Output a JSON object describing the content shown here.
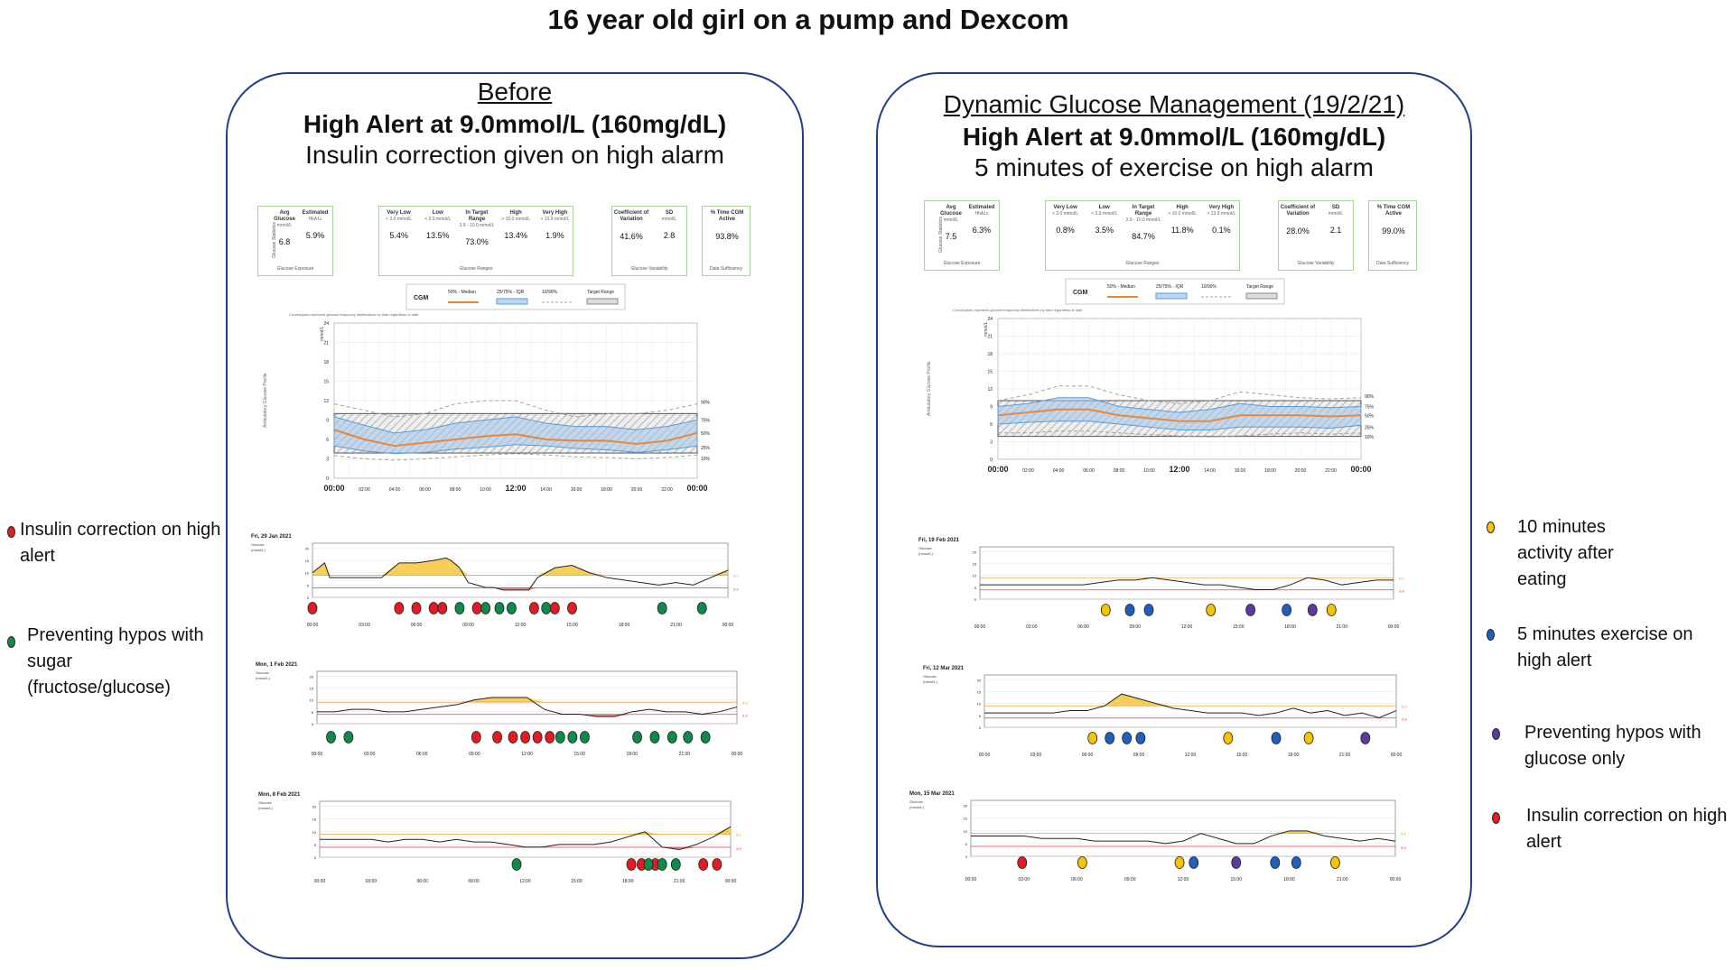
{
  "title": "16 year old girl on a pump and Dexcom",
  "colors": {
    "panel_border": "#1f3d8a",
    "red": "#e41b23",
    "green": "#0e8a4a",
    "yellow": "#f5c400",
    "blue": "#1e5fbf",
    "purple": "#5b3b9e",
    "median": "#e8873a",
    "iqr": "#5b9bd5",
    "fill": "#f7c948"
  },
  "left": {
    "heading": "Before",
    "alert": "High Alert at 9.0mmol/L (160mg/dL)",
    "subheading": "Insulin correction given on high alarm",
    "stats": {
      "g1_label": "Glucose Statistics",
      "g1_caption": "Glucose Exposure",
      "avg_label": "Avg Glucose",
      "avg_unit": "mmol/L",
      "avg": "6.8",
      "a1c_label": "Estimated",
      "a1c_sub": "HbA1c",
      "a1c": "5.9%",
      "g2_caption": "Glucose Ranges",
      "vlow_label": "Very Low",
      "vlow_sub": "< 3.0 mmol/L",
      "vlow": "5.4%",
      "low_label": "Low",
      "low_sub": "< 3.9 mmol/L",
      "low": "13.5%",
      "tir_label": "In Target Range",
      "tir_sub": "3.9 - 10.0 mmol/L",
      "tir": "73.0%",
      "high_label": "High",
      "high_sub": "> 10.0 mmol/L",
      "high": "13.4%",
      "vhigh_label": "Very High",
      "vhigh_sub": "> 13.9 mmol/L",
      "vhigh": "1.9%",
      "g3_caption": "Glucose Variability",
      "cv_label": "Coefficient of Variation",
      "cv": "41.6%",
      "sd_label": "SD",
      "sd_sub": "mmol/L",
      "sd": "2.8",
      "g4_caption": "Data Sufficiency",
      "cgm_label": "% Time CGM Active",
      "cgm": "93.8%"
    },
    "days": [
      "Fri, 29 Jan 2021",
      "Mon, 1 Feb 2021",
      "Mon, 8 Feb 2021"
    ]
  },
  "right": {
    "heading": "Dynamic Glucose Management (19/2/21)",
    "alert": "High Alert at 9.0mmol/L (160mg/dL)",
    "subheading": "5 minutes of exercise on high alarm",
    "stats": {
      "g1_label": "Glucose Statistics",
      "g1_caption": "Glucose Exposure",
      "avg_label": "Avg Glucose",
      "avg_unit": "mmol/L",
      "avg": "7.5",
      "a1c_label": "Estimated",
      "a1c_sub": "HbA1c",
      "a1c": "6.3%",
      "g2_caption": "Glucose Ranges",
      "vlow_label": "Very Low",
      "vlow_sub": "< 3.0 mmol/L",
      "vlow": "0.8%",
      "low_label": "Low",
      "low_sub": "< 3.9 mmol/L",
      "low": "3.5%",
      "tir_label": "In Target Range",
      "tir_sub": "3.9 - 10.0 mmol/L",
      "tir": "84.7%",
      "high_label": "High",
      "high_sub": "> 10.0 mmol/L",
      "high": "11.8%",
      "vhigh_label": "Very High",
      "vhigh_sub": "> 13.9 mmol/L",
      "vhigh": "0.1%",
      "g3_caption": "Glucose Variability",
      "cv_label": "Coefficient of Variation",
      "cv": "28.0%",
      "sd_label": "SD",
      "sd_sub": "mmol/L",
      "sd": "2.1",
      "g4_caption": "Data Sufficiency",
      "cgm_label": "% Time CGM Active",
      "cgm": "99.0%"
    },
    "days": [
      "Fri, 19 Feb 2021",
      "Fri, 12 Mar 2021",
      "Mon, 15 Mar 2021"
    ]
  },
  "legend_cgm": {
    "cgm": "CGM",
    "median": "50% - Median",
    "iqr": "25/75% - IQR",
    "p1090": "10/90%",
    "target": "Target Range"
  },
  "agp_caption": "Curves/plots represent glucose frequency distributions by time regardless of date",
  "agp_ylabel": "Ambulatory Glucose Profile",
  "agp_unit": "mmol/L",
  "day_ylabel": "Glucose",
  "day_unit": "(mmol/L)",
  "left_key": [
    {
      "color": "red",
      "text": "Insulin correction on high alert"
    },
    {
      "color": "green",
      "text": "Preventing hypos with sugar (fructose/glucose)"
    }
  ],
  "right_key": [
    {
      "color": "yellow",
      "text": "10 minutes activity after eating"
    },
    {
      "color": "blue",
      "text": "5 minutes exercise on high alert"
    },
    {
      "color": "purple",
      "text": "Preventing hypos with glucose only"
    },
    {
      "color": "red",
      "text": "Insulin correction on high alert"
    }
  ],
  "chart_data": [
    {
      "type": "area",
      "name_in_image": "Before AGP",
      "x_hours": [
        0,
        2,
        4,
        6,
        8,
        10,
        12,
        14,
        16,
        18,
        20,
        22,
        24
      ],
      "x_tick_labels": [
        "00:00",
        "02:00",
        "04:00",
        "06:00",
        "08:00",
        "10:00",
        "12:00",
        "14:00",
        "16:00",
        "18:00",
        "20:00",
        "22:00",
        "00:00"
      ],
      "y_ticks": [
        0,
        3,
        6,
        9,
        12,
        15,
        18,
        21,
        24
      ],
      "ylim": [
        0,
        24
      ],
      "percentile_labels": [
        "90%",
        "75%",
        "50%",
        "25%",
        "10%"
      ],
      "target_range": [
        3.9,
        10
      ],
      "p10": [
        3.5,
        3.0,
        2.8,
        3.0,
        3.3,
        3.6,
        3.8,
        3.6,
        3.3,
        3.2,
        3.0,
        3.2,
        3.6
      ],
      "p25": [
        5.0,
        4.2,
        3.8,
        4.0,
        4.5,
        4.8,
        5.2,
        5.0,
        4.6,
        4.4,
        4.0,
        4.4,
        5.0
      ],
      "p50": [
        7.5,
        6.0,
        5.0,
        5.5,
        6.0,
        6.5,
        6.8,
        6.0,
        5.8,
        5.8,
        5.3,
        5.8,
        7.0
      ],
      "p75": [
        9.5,
        8.2,
        7.0,
        7.5,
        8.5,
        9.0,
        9.5,
        8.5,
        8.0,
        8.0,
        7.5,
        8.0,
        9.0
      ],
      "p90": [
        11.5,
        10.5,
        9.5,
        10.0,
        11.5,
        12.0,
        12.0,
        10.5,
        9.5,
        10.0,
        10.0,
        10.5,
        11.5
      ]
    },
    {
      "type": "area",
      "name_in_image": "Dynamic Glucose Management AGP",
      "x_hours": [
        0,
        2,
        4,
        6,
        8,
        10,
        12,
        14,
        16,
        18,
        20,
        22,
        24
      ],
      "x_tick_labels": [
        "00:00",
        "02:00",
        "04:00",
        "06:00",
        "08:00",
        "10:00",
        "12:00",
        "14:00",
        "16:00",
        "18:00",
        "20:00",
        "22:00",
        "00:00"
      ],
      "y_ticks": [
        0,
        3,
        6,
        9,
        12,
        15,
        18,
        21,
        24
      ],
      "ylim": [
        0,
        24
      ],
      "percentile_labels": [
        "90%",
        "75%",
        "50%",
        "25%",
        "10%"
      ],
      "target_range": [
        3.9,
        10
      ],
      "p10": [
        4.5,
        4.5,
        4.8,
        4.8,
        4.5,
        4.2,
        4.0,
        3.8,
        4.0,
        4.3,
        4.5,
        4.3,
        4.5
      ],
      "p25": [
        6.0,
        6.3,
        6.5,
        6.5,
        6.0,
        5.5,
        5.0,
        5.0,
        5.5,
        5.5,
        5.5,
        5.3,
        5.8
      ],
      "p50": [
        7.5,
        8.0,
        8.5,
        8.5,
        7.5,
        7.0,
        6.5,
        6.5,
        7.5,
        7.5,
        7.5,
        7.3,
        7.5
      ],
      "p75": [
        9.0,
        9.5,
        10.5,
        10.5,
        9.0,
        8.5,
        8.0,
        8.5,
        9.5,
        9.0,
        9.0,
        8.8,
        9.0
      ],
      "p90": [
        10.0,
        11.0,
        12.5,
        12.5,
        11.0,
        10.0,
        9.5,
        10.0,
        11.5,
        11.0,
        10.5,
        10.3,
        10.5
      ]
    },
    {
      "type": "line",
      "name_in_image": "Fri, 29 Jan 2021",
      "x_tick_labels": [
        "00:00",
        "03:00",
        "06:00",
        "09:00",
        "12:00",
        "15:00",
        "18:00",
        "21:00",
        "00:00"
      ],
      "y_ticks": [
        0,
        5,
        10,
        15,
        20
      ],
      "ylim": [
        0,
        22
      ],
      "thresholds": {
        "high": 9.0,
        "low": 3.9
      },
      "threshold_labels": [
        "9.0",
        "3.9"
      ],
      "x_hours": [
        0,
        0.7,
        1,
        2,
        3,
        4,
        5,
        6,
        7,
        7.7,
        8,
        8.5,
        9,
        9.5,
        10,
        10.5,
        11,
        12,
        12.5,
        13,
        14,
        15,
        16,
        17,
        18,
        19,
        20,
        21,
        22,
        23,
        24
      ],
      "y": [
        10,
        14,
        8,
        8,
        8,
        8,
        14,
        14,
        15,
        16,
        15,
        12,
        6,
        5,
        4,
        4,
        3,
        3,
        3,
        8,
        12,
        13,
        10,
        8,
        7,
        6,
        5,
        6,
        5,
        8,
        11
      ],
      "markers": {
        "red": [
          0,
          5,
          6,
          7,
          7.5,
          9.5,
          12.8,
          14,
          15
        ],
        "green": [
          8.5,
          10,
          10.8,
          11.5,
          13.5,
          20.2,
          22.5
        ]
      }
    },
    {
      "type": "line",
      "name_in_image": "Mon, 1 Feb 2021",
      "x_tick_labels": [
        "00:00",
        "03:00",
        "06:00",
        "09:00",
        "12:00",
        "15:00",
        "18:00",
        "21:00",
        "00:00"
      ],
      "y_ticks": [
        0,
        5,
        10,
        15,
        20
      ],
      "ylim": [
        0,
        22
      ],
      "thresholds": {
        "high": 9.0,
        "low": 3.9
      },
      "threshold_labels": [
        "9.0",
        "3.9"
      ],
      "x_hours": [
        0,
        1,
        2,
        3,
        4,
        5,
        6,
        7,
        8,
        9,
        10,
        11,
        12,
        13,
        14,
        15,
        16,
        17,
        18,
        19,
        20,
        21,
        22,
        23,
        24
      ],
      "y": [
        5,
        5,
        6,
        6,
        5,
        5,
        6,
        7,
        8,
        10,
        11,
        11,
        11,
        6,
        4,
        4,
        3,
        3,
        5,
        6,
        5,
        5,
        4,
        5,
        7
      ],
      "markers": {
        "red": [
          9.1,
          10.3,
          11.2,
          11.9,
          12.6,
          13.3
        ],
        "green": [
          0.8,
          1.8,
          13.9,
          14.6,
          15.3,
          18.3,
          19.3,
          20.3,
          21.2,
          22.2
        ]
      }
    },
    {
      "type": "line",
      "name_in_image": "Mon, 8 Feb 2021",
      "x_tick_labels": [
        "00:00",
        "03:00",
        "06:00",
        "09:00",
        "12:00",
        "15:00",
        "18:00",
        "21:00",
        "00:00"
      ],
      "y_ticks": [
        0,
        5,
        10,
        15,
        20
      ],
      "ylim": [
        0,
        22
      ],
      "thresholds": {
        "high": 9.0,
        "low": 3.9
      },
      "threshold_labels": [
        "9.0",
        "3.9"
      ],
      "x_hours": [
        0,
        1,
        2,
        3,
        4,
        5,
        6,
        7,
        8,
        9,
        10,
        11,
        12,
        13,
        14,
        15,
        16,
        17,
        18,
        19,
        20,
        21,
        22,
        23,
        24
      ],
      "y": [
        7,
        7,
        7,
        7,
        6,
        7,
        7,
        6,
        7,
        6,
        6,
        5,
        4,
        4,
        5,
        5,
        5,
        6,
        8,
        10,
        4,
        3,
        5,
        8,
        12
      ],
      "markers": {
        "red": [
          18.2,
          18.8,
          19.6,
          22.4,
          23.2
        ],
        "green": [
          11.5,
          19.2,
          20,
          20.8
        ]
      }
    },
    {
      "type": "line",
      "name_in_image": "Fri, 19 Feb 2021",
      "x_tick_labels": [
        "00:00",
        "03:00",
        "06:00",
        "09:00",
        "12:00",
        "15:00",
        "18:00",
        "21:00",
        "00:00"
      ],
      "y_ticks": [
        0,
        5,
        10,
        15,
        20
      ],
      "ylim": [
        0,
        22
      ],
      "thresholds": {
        "high": 9.0,
        "low": 3.9
      },
      "threshold_labels": [
        "9.0",
        "3.9"
      ],
      "x_hours": [
        0,
        1,
        2,
        3,
        4,
        5,
        6,
        7,
        8,
        9,
        10,
        11,
        12,
        13,
        14,
        15,
        16,
        17,
        18,
        19,
        20,
        21,
        22,
        23,
        24
      ],
      "y": [
        6,
        6,
        6,
        6,
        6,
        6,
        6,
        7,
        8,
        8,
        9,
        8,
        7,
        6,
        6,
        5,
        4,
        4,
        6,
        9,
        8,
        6,
        7,
        8,
        8
      ],
      "markers": {
        "yellow": [
          7.3,
          13.4,
          20.4
        ],
        "blue": [
          8.7,
          9.8,
          17.8
        ],
        "purple": [
          15.7,
          19.3
        ]
      }
    },
    {
      "type": "line",
      "name_in_image": "Fri, 12 Mar 2021",
      "x_tick_labels": [
        "00:00",
        "03:00",
        "06:00",
        "09:00",
        "12:00",
        "15:00",
        "18:00",
        "21:00",
        "00:00"
      ],
      "y_ticks": [
        0,
        5,
        10,
        15,
        20
      ],
      "ylim": [
        0,
        22
      ],
      "thresholds": {
        "high": 9.0,
        "low": 3.9
      },
      "threshold_labels": [
        "9.0",
        "3.9"
      ],
      "x_hours": [
        0,
        1,
        2,
        3,
        4,
        5,
        6,
        7,
        8,
        9,
        10,
        11,
        12,
        13,
        14,
        15,
        16,
        17,
        18,
        19,
        20,
        21,
        22,
        23,
        24
      ],
      "y": [
        6,
        6,
        6,
        6,
        6,
        7,
        7,
        9,
        14,
        12,
        10,
        8,
        7,
        6,
        6,
        6,
        5,
        6,
        8,
        6,
        7,
        5,
        6,
        4,
        7
      ],
      "markers": {
        "yellow": [
          6.3,
          14.2,
          18.9
        ],
        "blue": [
          7.3,
          8.3,
          9.1,
          17
        ],
        "purple": [
          22.2
        ]
      }
    },
    {
      "type": "line",
      "name_in_image": "Mon, 15 Mar 2021",
      "x_tick_labels": [
        "00:00",
        "03:00",
        "06:00",
        "09:00",
        "12:00",
        "15:00",
        "18:00",
        "21:00",
        "00:00"
      ],
      "y_ticks": [
        0,
        5,
        10,
        15,
        20
      ],
      "ylim": [
        0,
        22
      ],
      "thresholds": {
        "high": 9.0,
        "low": 3.9
      },
      "threshold_labels": [
        "9.0",
        "3.9"
      ],
      "x_hours": [
        0,
        1,
        2,
        3,
        4,
        5,
        6,
        7,
        8,
        9,
        10,
        11,
        12,
        13,
        14,
        15,
        16,
        17,
        18,
        19,
        20,
        21,
        22,
        23,
        24
      ],
      "y": [
        8,
        8,
        8,
        8,
        7,
        7,
        7,
        6,
        6,
        6,
        6,
        5,
        6,
        9,
        7,
        5,
        5,
        8,
        10,
        10,
        8,
        7,
        6,
        7,
        6
      ],
      "markers": {
        "red": [
          2.9
        ],
        "yellow": [
          6.3,
          11.8,
          20.6
        ],
        "blue": [
          12.6,
          17.2,
          18.4
        ],
        "purple": [
          15
        ]
      }
    }
  ]
}
